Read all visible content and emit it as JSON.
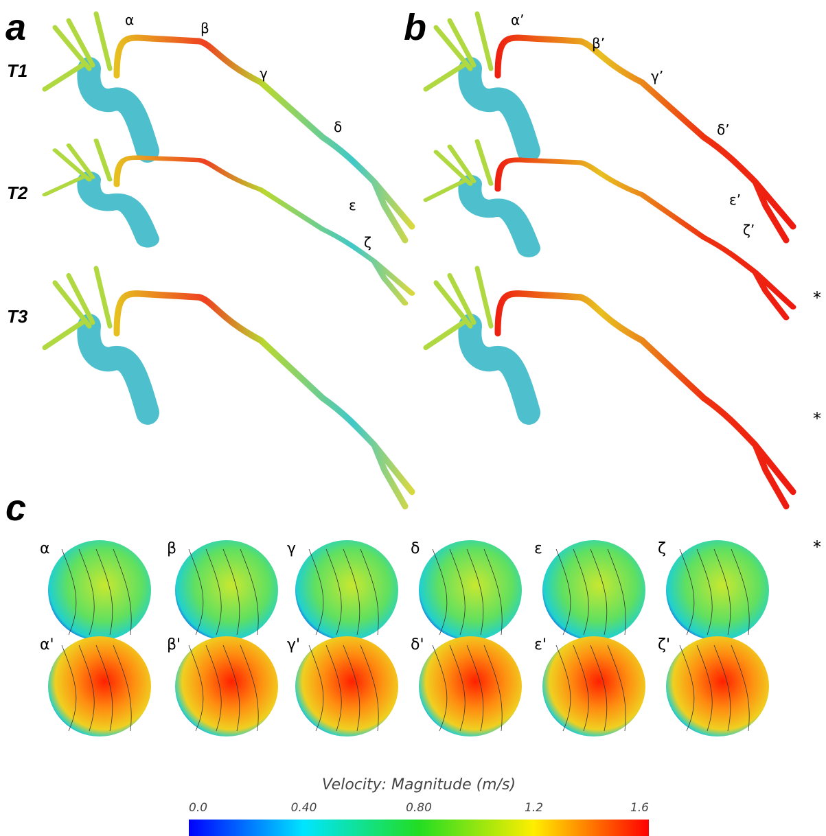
{
  "panels": [
    "a",
    "b",
    "c"
  ],
  "rows": [
    "T1",
    "T2",
    "T3"
  ],
  "vessel_labels_a": [
    "α",
    "β",
    "γ",
    "δ",
    "ε",
    "ζ"
  ],
  "vessel_labels_b": [
    "α’",
    "β’",
    "γ’",
    "δ’",
    "ε’",
    "ζ’"
  ],
  "asterisks": [
    "*",
    "*",
    "*"
  ],
  "cross_sections_top": [
    "α",
    "β",
    "γ",
    "δ",
    "ε",
    "ζ"
  ],
  "cross_sections_bottom": [
    "α'",
    "β'",
    "γ'",
    "δ'",
    "ε'",
    "ζ'"
  ],
  "colorbar": {
    "title": "Velocity: Magnitude (m/s)",
    "ticks": [
      "0.0",
      "0.40",
      "0.80",
      "1.2",
      "1.6"
    ]
  }
}
